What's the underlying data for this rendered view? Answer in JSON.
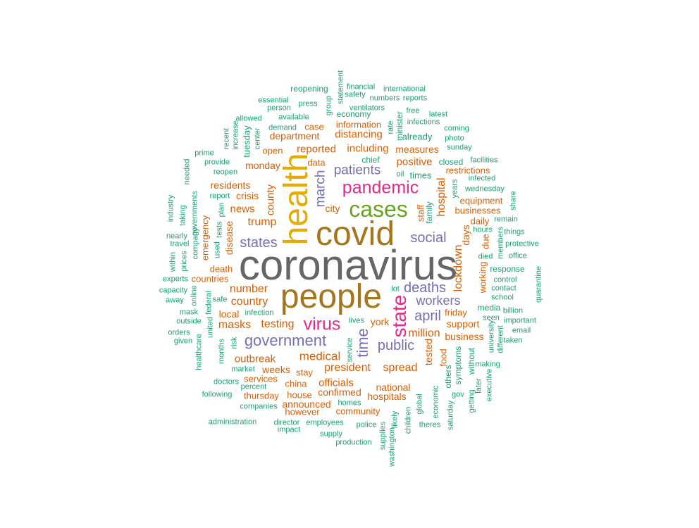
{
  "words": [
    {
      "text": "coronavirus",
      "color": "#666666"
    },
    {
      "text": "people",
      "color": "#a6761d"
    },
    {
      "text": "covid",
      "color": "#a6761d"
    },
    {
      "text": "health",
      "color": "#e6ab02"
    },
    {
      "text": "cases",
      "color": "#66a61e"
    },
    {
      "text": "pandemic",
      "color": "#e7298a"
    },
    {
      "text": "state",
      "color": "#e7298a"
    },
    {
      "text": "virus",
      "color": "#e7298a"
    },
    {
      "text": "government",
      "color": "#7570b3"
    },
    {
      "text": "public",
      "color": "#7570b3"
    },
    {
      "text": "deaths",
      "color": "#7570b3"
    },
    {
      "text": "april",
      "color": "#7570b3"
    },
    {
      "text": "social",
      "color": "#7570b3"
    },
    {
      "text": "patients",
      "color": "#7570b3"
    },
    {
      "text": "states",
      "color": "#7570b3"
    },
    {
      "text": "workers",
      "color": "#7570b3"
    },
    {
      "text": "time",
      "color": "#7570b3"
    },
    {
      "text": "march",
      "color": "#7570b3"
    },
    {
      "text": "medical",
      "color": "#d95f02"
    },
    {
      "text": "president",
      "color": "#d95f02"
    },
    {
      "text": "spread",
      "color": "#d95f02"
    },
    {
      "text": "testing",
      "color": "#d95f02"
    },
    {
      "text": "number",
      "color": "#d95f02"
    },
    {
      "text": "country",
      "color": "#d95f02"
    },
    {
      "text": "masks",
      "color": "#d95f02"
    },
    {
      "text": "trump",
      "color": "#d95f02"
    },
    {
      "text": "news",
      "color": "#d95f02"
    },
    {
      "text": "including",
      "color": "#d95f02"
    },
    {
      "text": "reported",
      "color": "#d95f02"
    },
    {
      "text": "distancing",
      "color": "#d95f02"
    },
    {
      "text": "positive",
      "color": "#d95f02"
    },
    {
      "text": "measures",
      "color": "#d95f02"
    },
    {
      "text": "hospital",
      "color": "#d95f02"
    },
    {
      "text": "lockdown",
      "color": "#d95f02"
    },
    {
      "text": "million",
      "color": "#d95f02"
    },
    {
      "text": "officials",
      "color": "#d95f02"
    },
    {
      "text": "outbreak",
      "color": "#d95f02"
    },
    {
      "text": "weeks",
      "color": "#d95f02"
    },
    {
      "text": "county",
      "color": "#d95f02"
    },
    {
      "text": "crisis",
      "color": "#d95f02"
    },
    {
      "text": "residents",
      "color": "#d95f02"
    },
    {
      "text": "monday",
      "color": "#d95f02"
    },
    {
      "text": "department",
      "color": "#d95f02"
    },
    {
      "text": "information",
      "color": "#d95f02"
    },
    {
      "text": "business",
      "color": "#d95f02"
    },
    {
      "text": "businesses",
      "color": "#d95f02"
    },
    {
      "text": "support",
      "color": "#d95f02"
    },
    {
      "text": "york",
      "color": "#d95f02"
    },
    {
      "text": "national",
      "color": "#d95f02"
    },
    {
      "text": "hospitals",
      "color": "#d95f02"
    },
    {
      "text": "confirmed",
      "color": "#d95f02"
    },
    {
      "text": "announced",
      "color": "#d95f02"
    },
    {
      "text": "community",
      "color": "#d95f02"
    },
    {
      "text": "china",
      "color": "#d95f02"
    },
    {
      "text": "house",
      "color": "#d95f02"
    },
    {
      "text": "services",
      "color": "#d95f02"
    },
    {
      "text": "local",
      "color": "#d95f02"
    },
    {
      "text": "tested",
      "color": "#d95f02"
    },
    {
      "text": "days",
      "color": "#d95f02"
    },
    {
      "text": "disease",
      "color": "#d95f02"
    },
    {
      "text": "death",
      "color": "#d95f02"
    },
    {
      "text": "countries",
      "color": "#d95f02"
    },
    {
      "text": "emergency",
      "color": "#d95f02"
    },
    {
      "text": "city",
      "color": "#d95f02"
    },
    {
      "text": "data",
      "color": "#d95f02"
    },
    {
      "text": "case",
      "color": "#d95f02"
    },
    {
      "text": "working",
      "color": "#d95f02"
    },
    {
      "text": "equipment",
      "color": "#d95f02"
    },
    {
      "text": "restrictions",
      "color": "#d95f02"
    },
    {
      "text": "food",
      "color": "#d95f02"
    },
    {
      "text": "thursday",
      "color": "#d95f02"
    },
    {
      "text": "however",
      "color": "#d95f02"
    },
    {
      "text": "staff",
      "color": "#d95f02"
    },
    {
      "text": "daily",
      "color": "#d95f02"
    },
    {
      "text": "stay",
      "color": "#d95f02"
    },
    {
      "text": "friday",
      "color": "#d95f02"
    },
    {
      "text": "open",
      "color": "#d95f02"
    },
    {
      "text": "due",
      "color": "#d95f02"
    },
    {
      "text": "times",
      "color": "#1b9e77"
    },
    {
      "text": "closed",
      "color": "#1b9e77"
    },
    {
      "text": "chief",
      "color": "#1b9e77"
    },
    {
      "text": "already",
      "color": "#1b9e77"
    },
    {
      "text": "economy",
      "color": "#1b9e77"
    },
    {
      "text": "family",
      "color": "#1b9e77"
    },
    {
      "text": "tuesday",
      "color": "#1b9e77"
    },
    {
      "text": "minister",
      "color": "#1b9e77"
    },
    {
      "text": "reopening",
      "color": "#1b9e77"
    },
    {
      "text": "statement",
      "color": "#1b9e77"
    },
    {
      "text": "financial",
      "color": "#1b9e77"
    },
    {
      "text": "international",
      "color": "#1b9e77"
    },
    {
      "text": "safety",
      "color": "#1b9e77"
    },
    {
      "text": "numbers",
      "color": "#1b9e77"
    },
    {
      "text": "reports",
      "color": "#1b9e77"
    },
    {
      "text": "essential",
      "color": "#1b9e77"
    },
    {
      "text": "press",
      "color": "#1b9e77"
    },
    {
      "text": "group",
      "color": "#1b9e77"
    },
    {
      "text": "ventilators",
      "color": "#1b9e77"
    },
    {
      "text": "person",
      "color": "#1b9e77"
    },
    {
      "text": "free",
      "color": "#1b9e77"
    },
    {
      "text": "latest",
      "color": "#1b9e77"
    },
    {
      "text": "allowed",
      "color": "#1b9e77"
    },
    {
      "text": "available",
      "color": "#1b9e77"
    },
    {
      "text": "rate",
      "color": "#1b9e77"
    },
    {
      "text": "infections",
      "color": "#1b9e77"
    },
    {
      "text": "coming",
      "color": "#1b9e77"
    },
    {
      "text": "recent",
      "color": "#1b9e77"
    },
    {
      "text": "increase",
      "color": "#1b9e77"
    },
    {
      "text": "demand",
      "color": "#1b9e77"
    },
    {
      "text": "center",
      "color": "#1b9e77"
    },
    {
      "text": "photo",
      "color": "#1b9e77"
    },
    {
      "text": "sunday",
      "color": "#1b9e77"
    },
    {
      "text": "prime",
      "color": "#1b9e77"
    },
    {
      "text": "provide",
      "color": "#1b9e77"
    },
    {
      "text": "needed",
      "color": "#1b9e77"
    },
    {
      "text": "reopen",
      "color": "#1b9e77"
    },
    {
      "text": "oil",
      "color": "#1b9e77"
    },
    {
      "text": "facilities",
      "color": "#1b9e77"
    },
    {
      "text": "infected",
      "color": "#1b9e77"
    },
    {
      "text": "years",
      "color": "#1b9e77"
    },
    {
      "text": "wednesday",
      "color": "#1b9e77"
    },
    {
      "text": "share",
      "color": "#1b9e77"
    },
    {
      "text": "report",
      "color": "#1b9e77"
    },
    {
      "text": "industry",
      "color": "#1b9e77"
    },
    {
      "text": "governments",
      "color": "#1b9e77"
    },
    {
      "text": "taking",
      "color": "#1b9e77"
    },
    {
      "text": "plan",
      "color": "#1b9e77"
    },
    {
      "text": "company",
      "color": "#1b9e77"
    },
    {
      "text": "remain",
      "color": "#1b9e77"
    },
    {
      "text": "hours",
      "color": "#1b9e77"
    },
    {
      "text": "things",
      "color": "#1b9e77"
    },
    {
      "text": "nearly",
      "color": "#1b9e77"
    },
    {
      "text": "travel",
      "color": "#1b9e77"
    },
    {
      "text": "tests",
      "color": "#1b9e77"
    },
    {
      "text": "used",
      "color": "#1b9e77"
    },
    {
      "text": "members",
      "color": "#1b9e77"
    },
    {
      "text": "protective",
      "color": "#1b9e77"
    },
    {
      "text": "within",
      "color": "#1b9e77"
    },
    {
      "text": "prices",
      "color": "#1b9e77"
    },
    {
      "text": "died",
      "color": "#1b9e77"
    },
    {
      "text": "office",
      "color": "#1b9e77"
    },
    {
      "text": "response",
      "color": "#1b9e77"
    },
    {
      "text": "quarantine",
      "color": "#1b9e77"
    },
    {
      "text": "experts",
      "color": "#1b9e77"
    },
    {
      "text": "control",
      "color": "#1b9e77"
    },
    {
      "text": "capacity",
      "color": "#1b9e77"
    },
    {
      "text": "online",
      "color": "#1b9e77"
    },
    {
      "text": "away",
      "color": "#1b9e77"
    },
    {
      "text": "safe",
      "color": "#1b9e77"
    },
    {
      "text": "lot",
      "color": "#1b9e77"
    },
    {
      "text": "contact",
      "color": "#1b9e77"
    },
    {
      "text": "school",
      "color": "#1b9e77"
    },
    {
      "text": "mask",
      "color": "#1b9e77"
    },
    {
      "text": "federal",
      "color": "#1b9e77"
    },
    {
      "text": "infection",
      "color": "#1b9e77"
    },
    {
      "text": "media",
      "color": "#1b9e77"
    },
    {
      "text": "billion",
      "color": "#1b9e77"
    },
    {
      "text": "outside",
      "color": "#1b9e77"
    },
    {
      "text": "seen",
      "color": "#1b9e77"
    },
    {
      "text": "important",
      "color": "#1b9e77"
    },
    {
      "text": "lives",
      "color": "#1b9e77"
    },
    {
      "text": "orders",
      "color": "#1b9e77"
    },
    {
      "text": "united",
      "color": "#1b9e77"
    },
    {
      "text": "given",
      "color": "#1b9e77"
    },
    {
      "text": "university",
      "color": "#1b9e77"
    },
    {
      "text": "email",
      "color": "#1b9e77"
    },
    {
      "text": "different",
      "color": "#1b9e77"
    },
    {
      "text": "taken",
      "color": "#1b9e77"
    },
    {
      "text": "risk",
      "color": "#1b9e77"
    },
    {
      "text": "service",
      "color": "#1b9e77"
    },
    {
      "text": "healthcare",
      "color": "#1b9e77"
    },
    {
      "text": "months",
      "color": "#1b9e77"
    },
    {
      "text": "symptoms",
      "color": "#1b9e77"
    },
    {
      "text": "without",
      "color": "#1b9e77"
    },
    {
      "text": "making",
      "color": "#1b9e77"
    },
    {
      "text": "market",
      "color": "#1b9e77"
    },
    {
      "text": "others",
      "color": "#1b9e77"
    },
    {
      "text": "later",
      "color": "#1b9e77"
    },
    {
      "text": "executive",
      "color": "#1b9e77"
    },
    {
      "text": "doctors",
      "color": "#1b9e77"
    },
    {
      "text": "percent",
      "color": "#1b9e77"
    },
    {
      "text": "gov",
      "color": "#1b9e77"
    },
    {
      "text": "getting",
      "color": "#1b9e77"
    },
    {
      "text": "economic",
      "color": "#1b9e77"
    },
    {
      "text": "following",
      "color": "#1b9e77"
    },
    {
      "text": "global",
      "color": "#1b9e77"
    },
    {
      "text": "homes",
      "color": "#1b9e77"
    },
    {
      "text": "companies",
      "color": "#1b9e77"
    },
    {
      "text": "saturday",
      "color": "#1b9e77"
    },
    {
      "text": "administration",
      "color": "#1b9e77"
    },
    {
      "text": "director",
      "color": "#1b9e77"
    },
    {
      "text": "employees",
      "color": "#1b9e77"
    },
    {
      "text": "police",
      "color": "#1b9e77"
    },
    {
      "text": "likely",
      "color": "#1b9e77"
    },
    {
      "text": "children",
      "color": "#1b9e77"
    },
    {
      "text": "theres",
      "color": "#1b9e77"
    },
    {
      "text": "impact",
      "color": "#1b9e77"
    },
    {
      "text": "supply",
      "color": "#1b9e77"
    },
    {
      "text": "supplies",
      "color": "#1b9e77"
    },
    {
      "text": "production",
      "color": "#1b9e77"
    },
    {
      "text": "washington",
      "color": "#1b9e77"
    }
  ]
}
